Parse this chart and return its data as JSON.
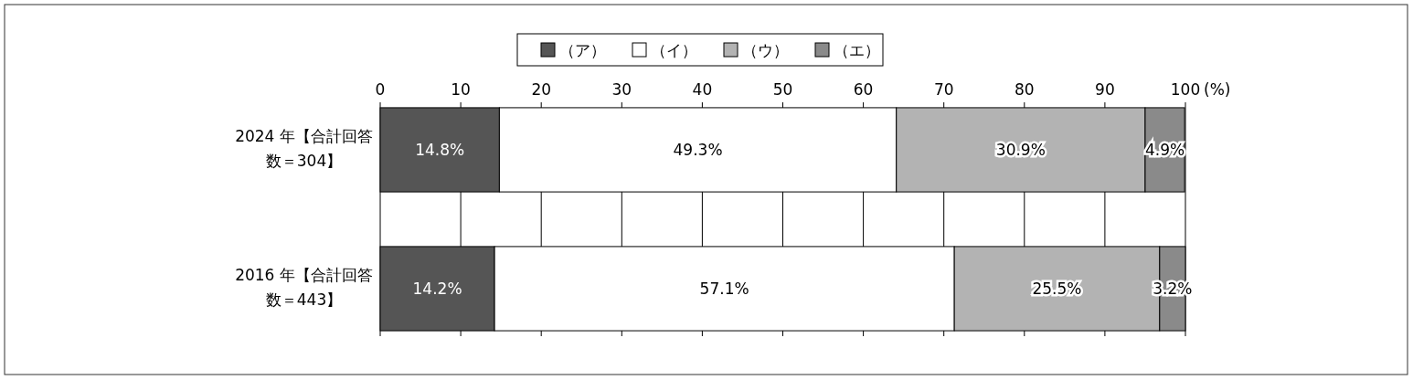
{
  "chart_data": {
    "type": "bar",
    "orientation": "horizontal",
    "stacked": true,
    "categories": [
      "2024 年【合計回答数＝304】",
      "2016 年【合計回答数＝443】"
    ],
    "series": [
      {
        "name": "（ア）",
        "color": "#555555",
        "values": [
          14.8,
          14.2
        ],
        "value_labels": [
          "14.8%",
          "14.2%"
        ]
      },
      {
        "name": "（イ）",
        "color": "#ffffff",
        "values": [
          49.3,
          57.1
        ],
        "value_labels": [
          "49.3%",
          "57.1%"
        ]
      },
      {
        "name": "（ウ）",
        "color": "#b3b3b3",
        "values": [
          30.9,
          25.5
        ],
        "value_labels": [
          "30.9%",
          "25.5%"
        ]
      },
      {
        "name": "（エ）",
        "color": "#8a8a8a",
        "values": [
          4.9,
          3.2
        ],
        "value_labels": [
          "4.9%",
          "3.2%"
        ]
      }
    ],
    "xlim": [
      0,
      100
    ],
    "xticks": [
      0,
      10,
      20,
      30,
      40,
      50,
      60,
      70,
      80,
      90,
      100
    ],
    "xlabel": "(%)",
    "grid": "x",
    "legend": "top"
  }
}
